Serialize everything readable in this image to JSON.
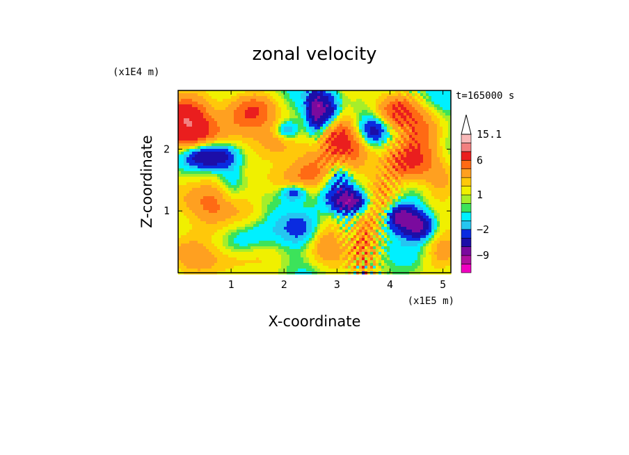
{
  "chart_data": {
    "type": "heatmap",
    "title": "zonal velocity",
    "xlabel": "X-coordinate",
    "ylabel": "Z-coordinate",
    "x_unit_label": "(x1E5 m)",
    "y_unit_label": "(x1E4 m)",
    "time_label": "t=165000 s",
    "xlim": [
      0,
      5.15
    ],
    "ylim": [
      0,
      2.95
    ],
    "x_ticks": [
      "1",
      "2",
      "3",
      "4",
      "5"
    ],
    "y_ticks": [
      "1",
      "2"
    ],
    "colorbar": {
      "levels": [
        {
          "min": -15,
          "max": -12,
          "color": "#f000c0"
        },
        {
          "min": -12,
          "max": -9,
          "color": "#b0109f"
        },
        {
          "min": -9,
          "max": -6,
          "color": "#7a0a9e"
        },
        {
          "min": -6,
          "max": -3.5,
          "color": "#1c0ea8"
        },
        {
          "min": -3.5,
          "max": -2,
          "color": "#0a2be0"
        },
        {
          "min": -2,
          "max": -1,
          "color": "#25c6f0"
        },
        {
          "min": -1,
          "max": 0,
          "color": "#00f0ff"
        },
        {
          "min": 0,
          "max": 0.5,
          "color": "#3ce35a"
        },
        {
          "min": 0.5,
          "max": 1,
          "color": "#a6ee2a"
        },
        {
          "min": 1,
          "max": 2,
          "color": "#f0f000"
        },
        {
          "min": 2,
          "max": 3,
          "color": "#ffc80a"
        },
        {
          "min": 3,
          "max": 4.5,
          "color": "#ffa020"
        },
        {
          "min": 4.5,
          "max": 6,
          "color": "#ff6a14"
        },
        {
          "min": 6,
          "max": 9,
          "color": "#ea1e1e"
        },
        {
          "min": 9,
          "max": 12,
          "color": "#f28080"
        },
        {
          "min": 12,
          "max": 15.1,
          "color": "#f8b8b8"
        }
      ],
      "labels": [
        "15.1",
        "6",
        "1",
        "−2",
        "−9"
      ],
      "extend_max": true
    },
    "field": {
      "base": 0.4,
      "blobs": [
        {
          "x": 0.35,
          "z": 2.25,
          "amp": 7,
          "sx": 0.4,
          "sz": 0.28
        },
        {
          "x": 0.55,
          "z": 1.9,
          "amp": -9,
          "sx": 0.35,
          "sz": 0.15
        },
        {
          "x": 0.1,
          "z": 2.6,
          "amp": 5,
          "sx": 0.3,
          "sz": 0.2
        },
        {
          "x": 0.6,
          "z": 1.25,
          "amp": 4,
          "sx": 0.5,
          "sz": 0.3
        },
        {
          "x": 0.2,
          "z": 0.4,
          "amp": 3,
          "sx": 0.4,
          "sz": 0.3
        },
        {
          "x": 1.0,
          "z": 1.45,
          "amp": -3,
          "sx": 0.2,
          "sz": 0.35
        },
        {
          "x": 1.2,
          "z": 2.45,
          "amp": 3,
          "sx": 0.35,
          "sz": 0.25
        },
        {
          "x": 1.3,
          "z": 1.0,
          "amp": 2,
          "sx": 0.4,
          "sz": 0.2
        },
        {
          "x": 1.1,
          "z": 0.2,
          "amp": 2,
          "sx": 0.35,
          "sz": 0.15
        },
        {
          "x": 1.45,
          "z": 2.65,
          "amp": 3,
          "sx": 0.3,
          "sz": 0.2
        },
        {
          "x": 1.9,
          "z": 2.1,
          "amp": 4,
          "sx": 0.3,
          "sz": 0.2
        },
        {
          "x": 1.9,
          "z": 0.65,
          "amp": -2,
          "sx": 0.6,
          "sz": 0.25
        },
        {
          "x": 1.6,
          "z": 0.3,
          "amp": 2,
          "sx": 0.3,
          "sz": 0.2
        },
        {
          "x": 2.0,
          "z": 1.45,
          "amp": 2,
          "sx": 0.35,
          "sz": 0.2
        },
        {
          "x": 2.2,
          "z": 1.3,
          "amp": -5,
          "sx": 0.18,
          "sz": 0.1
        },
        {
          "x": 2.05,
          "z": 2.3,
          "amp": -4,
          "sx": 0.15,
          "sz": 0.1
        },
        {
          "x": 2.6,
          "z": 2.6,
          "amp": -7,
          "sx": 0.12,
          "sz": 0.25
        },
        {
          "x": 2.6,
          "z": 1.7,
          "amp": 4,
          "sx": 0.35,
          "sz": 0.25
        },
        {
          "x": 2.35,
          "z": 0.7,
          "amp": -3,
          "sx": 0.3,
          "sz": 0.2
        },
        {
          "x": 2.8,
          "z": 0.55,
          "amp": 5,
          "sx": 0.25,
          "sz": 0.35
        },
        {
          "x": 2.75,
          "z": 1.25,
          "amp": -2,
          "sx": 0.2,
          "sz": 0.2
        },
        {
          "x": 2.85,
          "z": 2.6,
          "amp": -6,
          "sx": 0.15,
          "sz": 0.2
        },
        {
          "x": 3.0,
          "z": 2.2,
          "amp": 5,
          "sx": 0.22,
          "sz": 0.3
        },
        {
          "x": 3.25,
          "z": 1.15,
          "amp": -9,
          "sx": 0.25,
          "sz": 0.14
        },
        {
          "x": 3.05,
          "z": 1.5,
          "amp": -4,
          "sx": 0.18,
          "sz": 0.2
        },
        {
          "x": 3.5,
          "z": 0.55,
          "amp": 4,
          "sx": 0.2,
          "sz": 0.3
        },
        {
          "x": 3.35,
          "z": 1.9,
          "amp": 4,
          "sx": 0.2,
          "sz": 0.3
        },
        {
          "x": 3.7,
          "z": 2.3,
          "amp": -5,
          "sx": 0.2,
          "sz": 0.15
        },
        {
          "x": 3.8,
          "z": 1.3,
          "amp": 3,
          "sx": 0.25,
          "sz": 0.3
        },
        {
          "x": 4.1,
          "z": 2.6,
          "amp": 6,
          "sx": 0.3,
          "sz": 0.2
        },
        {
          "x": 4.2,
          "z": 0.9,
          "amp": -8,
          "sx": 0.2,
          "sz": 0.15
        },
        {
          "x": 4.55,
          "z": 0.75,
          "amp": -7,
          "sx": 0.2,
          "sz": 0.15
        },
        {
          "x": 4.3,
          "z": 1.75,
          "amp": 4,
          "sx": 0.3,
          "sz": 0.2
        },
        {
          "x": 4.6,
          "z": 2.2,
          "amp": 5,
          "sx": 0.3,
          "sz": 0.3
        },
        {
          "x": 4.9,
          "z": 1.4,
          "amp": 3,
          "sx": 0.25,
          "sz": 0.35
        },
        {
          "x": 5.0,
          "z": 0.3,
          "amp": 3,
          "sx": 0.25,
          "sz": 0.2
        },
        {
          "x": 4.8,
          "z": 2.75,
          "amp": -2,
          "sx": 0.3,
          "sz": 0.2
        }
      ],
      "waves": {
        "x0": 3.5,
        "z0": 0.0,
        "amp": 2.5,
        "wavelength": 0.16,
        "width": 0.28,
        "slope": 0.9,
        "decay": 1.2
      }
    }
  }
}
